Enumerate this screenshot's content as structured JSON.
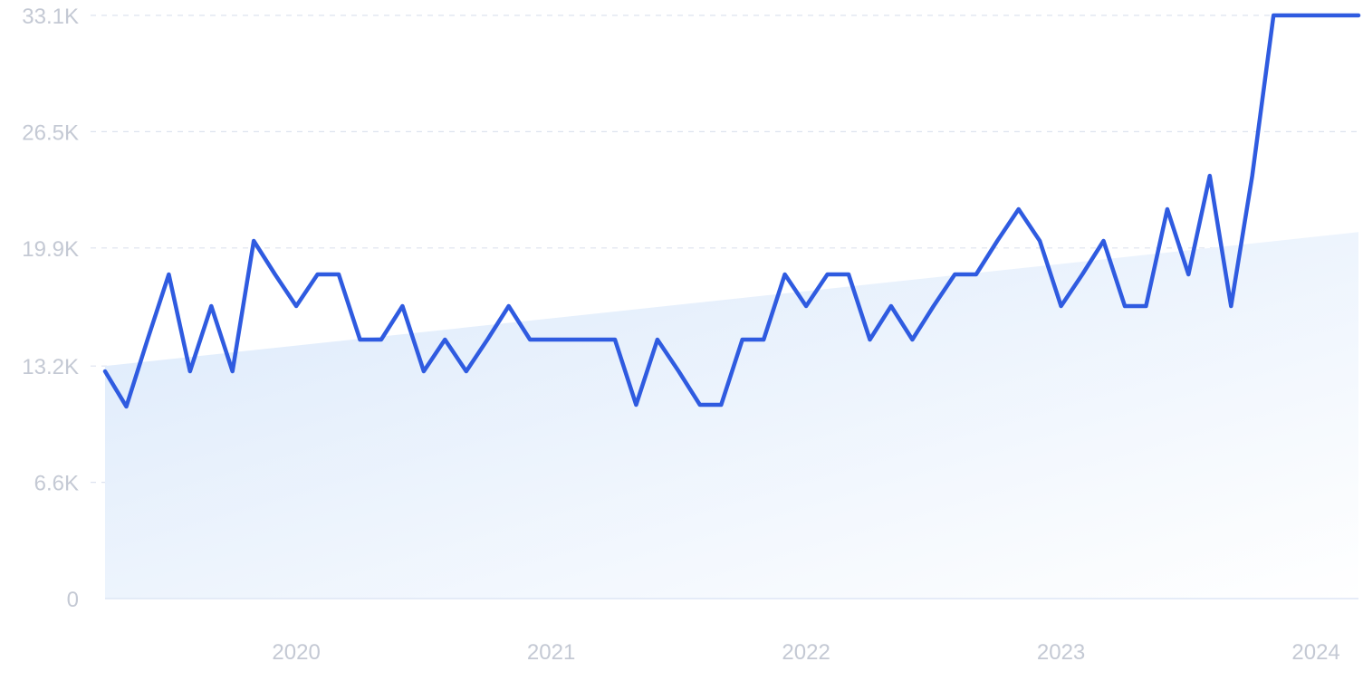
{
  "chart_data": {
    "type": "line",
    "title": "",
    "xlabel": "",
    "ylabel": "",
    "y_ticks": [
      "0",
      "6.6K",
      "13.2K",
      "19.9K",
      "26.5K",
      "33.1K"
    ],
    "y_tick_values": [
      0,
      6600,
      13200,
      19900,
      26500,
      33100
    ],
    "ylim": [
      0,
      33100
    ],
    "x_ticks": [
      "2020",
      "2021",
      "2022",
      "2023",
      "2024"
    ],
    "x_tick_dates": [
      "2020-01",
      "2021-01",
      "2022-01",
      "2023-01",
      "2024-01"
    ],
    "x_range": [
      "2019-04",
      "2024-03"
    ],
    "grid": true,
    "legend": "none",
    "colors": {
      "line": "#2f5be0",
      "trend_fill_top": "#dbe9fb",
      "trend_fill_bottom": "#ffffff"
    },
    "trend": {
      "start": {
        "x": "2019-04",
        "y": 13200
      },
      "end": {
        "x": "2024-03",
        "y": 20800
      }
    },
    "series": [
      {
        "x": [
          "2019-04",
          "2019-05",
          "2019-06",
          "2019-07",
          "2019-08",
          "2019-09",
          "2019-10",
          "2019-11",
          "2019-12",
          "2020-01",
          "2020-02",
          "2020-03",
          "2020-04",
          "2020-05",
          "2020-06",
          "2020-07",
          "2020-08",
          "2020-09",
          "2020-10",
          "2020-11",
          "2020-12",
          "2021-01",
          "2021-02",
          "2021-03",
          "2021-04",
          "2021-05",
          "2021-06",
          "2021-07",
          "2021-08",
          "2021-09",
          "2021-10",
          "2021-11",
          "2021-12",
          "2022-01",
          "2022-02",
          "2022-03",
          "2022-04",
          "2022-05",
          "2022-06",
          "2022-07",
          "2022-08",
          "2022-09",
          "2022-10",
          "2022-11",
          "2022-12",
          "2023-01",
          "2023-02",
          "2023-03",
          "2023-04",
          "2023-05",
          "2023-06",
          "2023-07",
          "2023-08",
          "2023-09",
          "2023-10",
          "2023-11",
          "2023-12",
          "2024-01",
          "2024-02",
          "2024-03"
        ],
        "values": [
          12900,
          10900,
          14700,
          18400,
          12900,
          16600,
          12900,
          20300,
          18400,
          16600,
          18400,
          18400,
          14700,
          14700,
          16600,
          12900,
          14700,
          12900,
          14700,
          16600,
          14700,
          14700,
          14700,
          14700,
          14700,
          11000,
          14700,
          12900,
          11000,
          11000,
          14700,
          14700,
          18400,
          16600,
          18400,
          18400,
          14700,
          16600,
          14700,
          16600,
          18400,
          18400,
          20300,
          22100,
          20300,
          16600,
          18400,
          20300,
          16600,
          16600,
          22100,
          18400,
          24000,
          16600,
          24000,
          33100,
          33100,
          33100,
          33100,
          33100
        ]
      }
    ]
  }
}
